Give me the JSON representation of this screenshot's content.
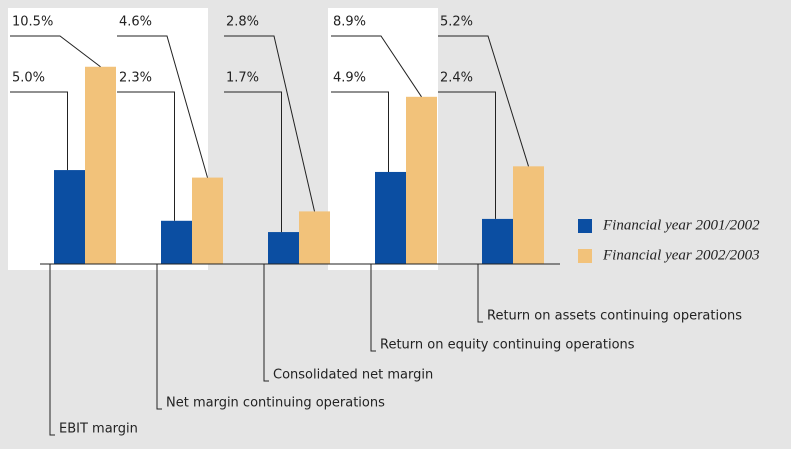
{
  "chart_data": {
    "type": "bar",
    "categories": [
      "EBIT margin",
      "Net margin continuing operations",
      "Consolidated net margin",
      "Return on equity continuing operations",
      "Return on assets continuing operations"
    ],
    "series": [
      {
        "name": "Financial year 2001/2002",
        "color": "#0b4ea2",
        "values": [
          5.0,
          2.3,
          1.7,
          4.9,
          2.4
        ],
        "value_labels": [
          "5.0%",
          "2.3%",
          "1.7%",
          "4.9%",
          "2.4%"
        ]
      },
      {
        "name": "Financial year 2002/2003",
        "color": "#f2c27a",
        "values": [
          10.5,
          4.6,
          2.8,
          8.9,
          5.2
        ],
        "value_labels": [
          "10.5%",
          "4.6%",
          "2.8%",
          "8.9%",
          "5.2%"
        ]
      }
    ],
    "ylim": [
      0,
      14
    ]
  }
}
